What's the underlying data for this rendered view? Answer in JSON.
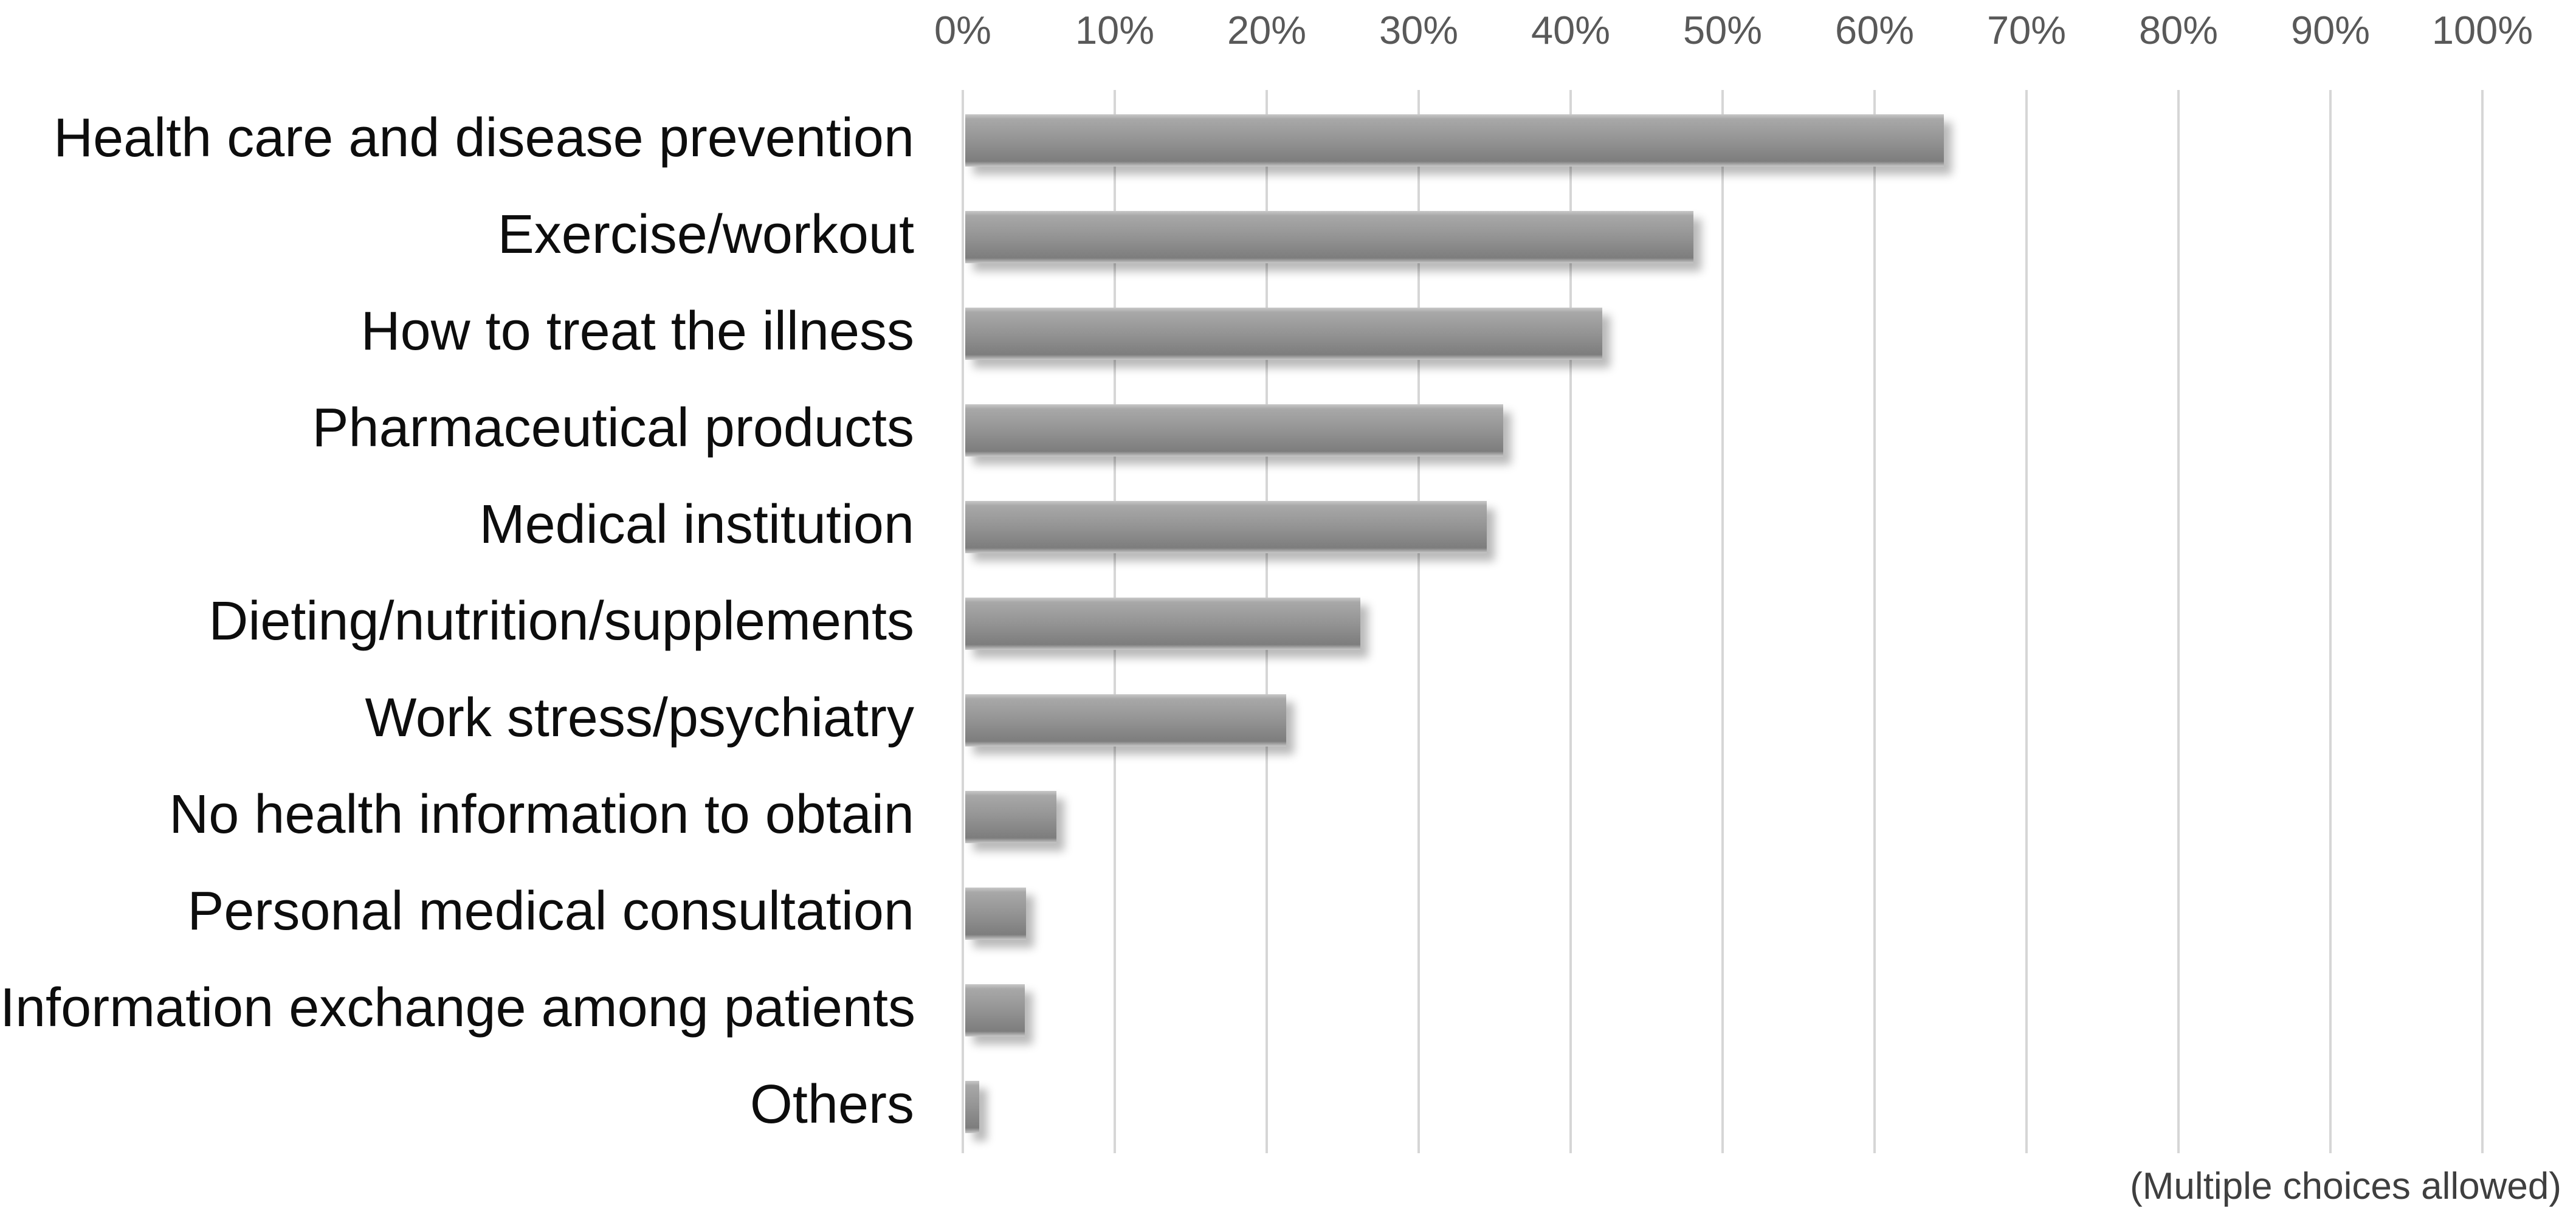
{
  "chart_data": {
    "type": "bar",
    "orientation": "horizontal",
    "title": "",
    "categories": [
      "Health care and disease prevention",
      "Exercise/workout",
      "How to treat the illness",
      "Pharmaceutical products",
      "Medical institution",
      "Dieting/nutrition/supplements",
      "Work stress/psychiatry",
      "No health information to obtain",
      "Personal medical consultation",
      "Information exchange among patients",
      "Others"
    ],
    "values": [
      64.4,
      47.9,
      41.9,
      35.4,
      34.3,
      26.0,
      21.1,
      6.0,
      4.0,
      3.9,
      0.9
    ],
    "value_unit": "%",
    "x_axis": {
      "position": "top",
      "min": 0,
      "max": 100,
      "step": 10,
      "ticks": [
        "0%",
        "10%",
        "20%",
        "30%",
        "40%",
        "50%",
        "60%",
        "70%",
        "80%",
        "90%",
        "100%"
      ]
    },
    "grid": true,
    "legend": "none",
    "note": "(Multiple choices allowed)",
    "colors": {
      "background": "#ffffff",
      "bar_edge": "#c9c9c9",
      "bar_light": "#a8a8a8",
      "bar_mid": "#969696",
      "bar_dark": "#7d7d7d",
      "gridline": "#d6d6d6",
      "axis_label": "#595959",
      "category_label": "#0d0d0d",
      "note_text": "#3f3f3f"
    }
  }
}
